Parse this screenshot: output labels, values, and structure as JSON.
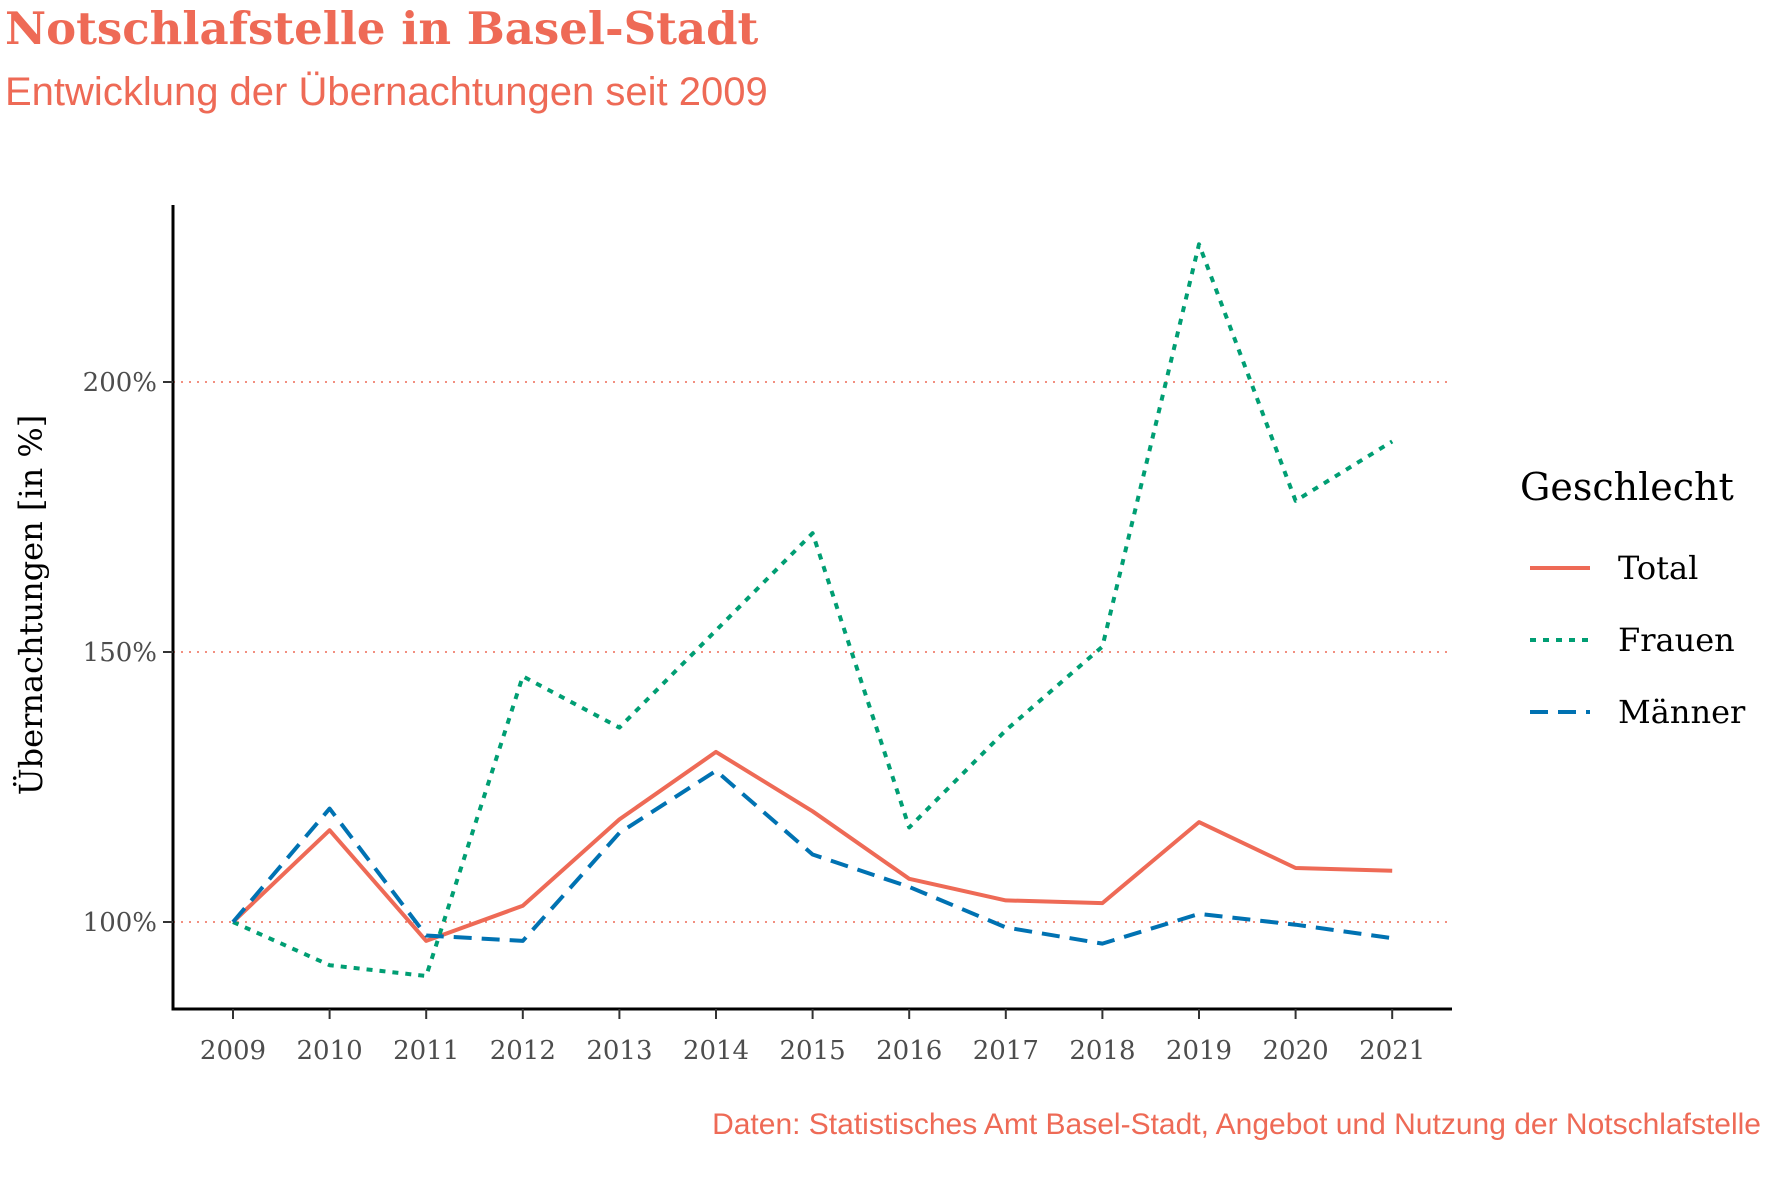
{
  "title": "Notschlafstelle in Basel-Stadt",
  "subtitle": "Entwicklung der Übernachtungen seit 2009",
  "caption": "Daten: Statistisches Amt Basel-Stadt, Angebot und Nutzung der Notschlafstelle",
  "colors": {
    "accent": "#EE6A56",
    "Total": "#EE6A56",
    "Frauen": "#009E73",
    "Männer": "#0072B2"
  },
  "chart_data": {
    "type": "line",
    "title": "Notschlafstelle in Basel-Stadt",
    "subtitle": "Entwicklung der Übernachtungen seit 2009",
    "xlabel": "",
    "ylabel": "Übernachtungen [in %]",
    "x": [
      "2009",
      "2010",
      "2011",
      "2012",
      "2013",
      "2014",
      "2015",
      "2016",
      "2017",
      "2018",
      "2019",
      "2020",
      "2021"
    ],
    "yticks": [
      100,
      150,
      200
    ],
    "ytick_labels": [
      "100%",
      "150%",
      "200%"
    ],
    "ylim": [
      84,
      233
    ],
    "grid": "horizontal dotted at major ticks",
    "legend_title": "Geschlecht",
    "legend_position": "right",
    "series": [
      {
        "name": "Total",
        "dash": "solid",
        "color": "#EE6A56",
        "values": [
          100,
          117,
          96.5,
          103,
          119,
          131.5,
          120.5,
          108,
          104,
          103.5,
          118.5,
          110,
          109.5
        ]
      },
      {
        "name": "Frauen",
        "dash": "dotted",
        "color": "#009E73",
        "values": [
          100,
          92,
          90,
          145.5,
          136,
          154,
          172,
          117.5,
          135.5,
          151,
          225.5,
          178,
          189
        ]
      },
      {
        "name": "Männer",
        "dash": "dashed",
        "color": "#0072B2",
        "values": [
          100,
          121,
          97.5,
          96.5,
          116.5,
          128,
          112.5,
          106.5,
          99,
          96,
          101.5,
          99.5,
          97
        ]
      }
    ]
  }
}
